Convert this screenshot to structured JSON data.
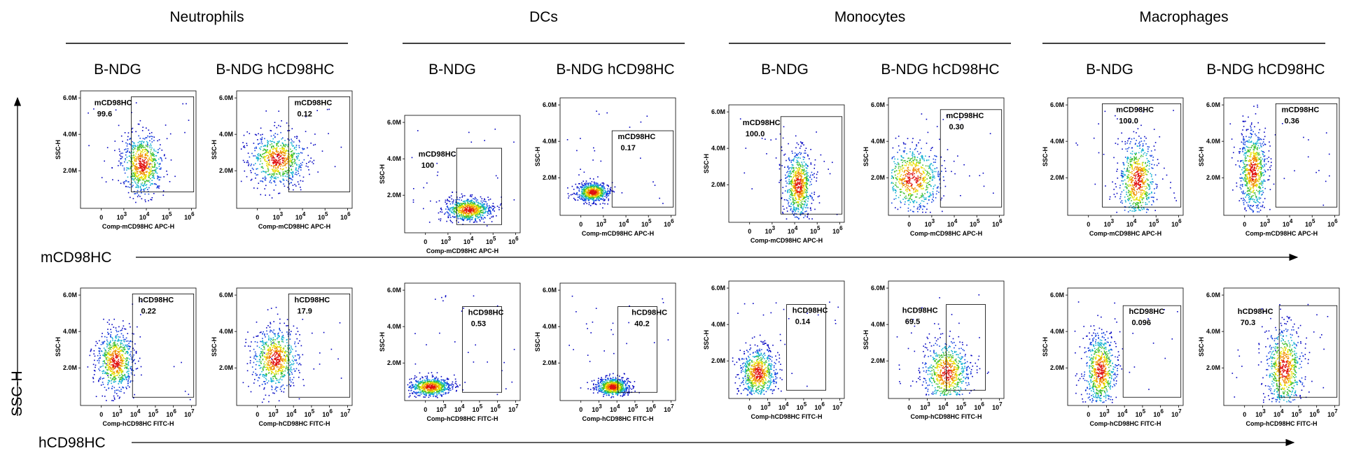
{
  "y_axis_title": "SSC-H",
  "plot_y_title": "SSC-H",
  "y_ticks": [
    "2.0M",
    "4.0M",
    "6.0M"
  ],
  "cell_types": [
    {
      "title": "Neutrophils",
      "strains": [
        "B-NDG",
        "B-NDG hCD98HC"
      ]
    },
    {
      "title": "DCs",
      "strains": [
        "B-NDG",
        "B-NDG hCD98HC"
      ]
    },
    {
      "title": "Monocytes",
      "strains": [
        "B-NDG",
        "B-NDG hCD98HC"
      ]
    },
    {
      "title": "Macrophages",
      "strains": [
        "B-NDG",
        "B-NDG hCD98HC"
      ]
    }
  ],
  "markers": [
    {
      "label": "mCD98HC",
      "channel": "Comp-mCD98HC APC-H",
      "x_ticks": [
        "0",
        {
          "base": "10",
          "exponent": "3"
        },
        {
          "base": "10",
          "exponent": "4"
        },
        {
          "base": "10",
          "exponent": "5"
        },
        {
          "base": "10",
          "exponent": "6"
        }
      ],
      "gates": [
        {
          "name": "mCD98HC",
          "value": "99.6"
        },
        {
          "name": "mCD98HC",
          "value": "0.12"
        },
        {
          "name": "mCD98HC",
          "value": "100"
        },
        {
          "name": "mCD98HC",
          "value": "0.17"
        },
        {
          "name": "mCD98HC",
          "value": "100.0"
        },
        {
          "name": "mCD98HC",
          "value": "0.30"
        },
        {
          "name": "mCD98HC",
          "value": "100.0"
        },
        {
          "name": "mCD98HC",
          "value": "0.36"
        }
      ]
    },
    {
      "label": "hCD98HC",
      "channel": "Comp-hCD98HC FITC-H",
      "x_ticks": [
        "0",
        {
          "base": "10",
          "exponent": "3"
        },
        {
          "base": "10",
          "exponent": "4"
        },
        {
          "base": "10",
          "exponent": "5"
        },
        {
          "base": "10",
          "exponent": "6"
        },
        {
          "base": "10",
          "exponent": "7"
        }
      ],
      "gates": [
        {
          "name": "hCD98HC",
          "value": "0.22"
        },
        {
          "name": "hCD98HC",
          "value": "17.9"
        },
        {
          "name": "hCD98HC",
          "value": "0.53"
        },
        {
          "name": "hCD98HC",
          "value": "40.2"
        },
        {
          "name": "hCD98HC",
          "value": "0.14"
        },
        {
          "name": "hCD98HC",
          "value": "69.5"
        },
        {
          "name": "hCD98HC",
          "value": "0.096"
        },
        {
          "name": "hCD98HC",
          "value": "70.3"
        }
      ]
    }
  ]
}
